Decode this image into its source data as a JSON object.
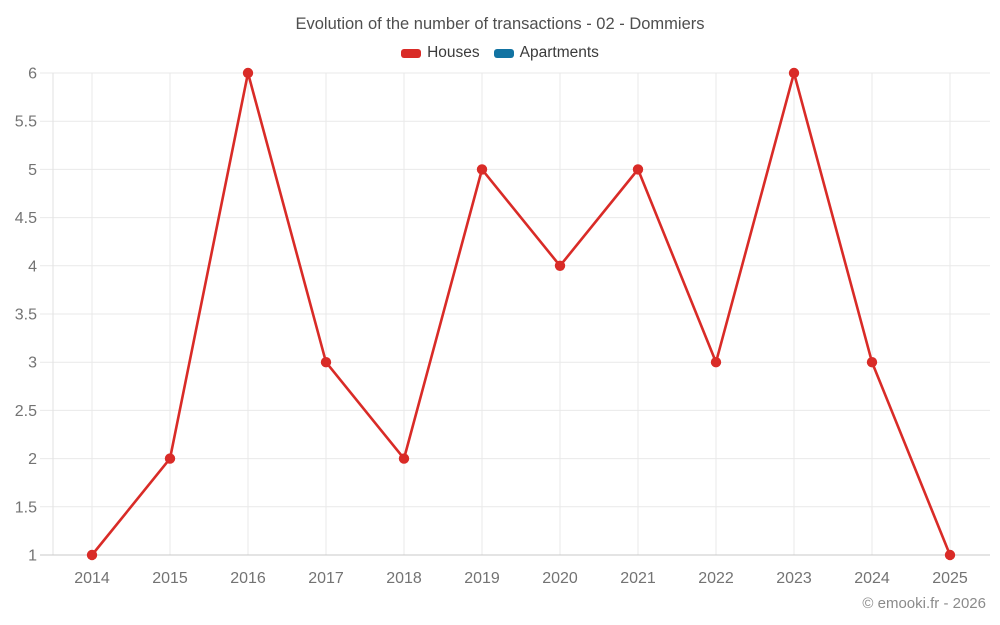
{
  "chart_data": {
    "type": "line",
    "title": "Evolution of the number of transactions - 02 - Dommiers",
    "categories": [
      "2014",
      "2015",
      "2016",
      "2017",
      "2018",
      "2019",
      "2020",
      "2021",
      "2022",
      "2023",
      "2024",
      "2025"
    ],
    "series": [
      {
        "name": "Houses",
        "color": "#d92b27",
        "values": [
          1,
          2,
          6,
          3,
          2,
          5,
          4,
          5,
          3,
          6,
          3,
          1
        ]
      },
      {
        "name": "Apartments",
        "color": "#1273a2",
        "values": []
      }
    ],
    "xlabel": "",
    "ylabel": "",
    "ylim": [
      1,
      6
    ],
    "yticks": [
      1,
      1.5,
      2,
      2.5,
      3,
      3.5,
      4,
      4.5,
      5,
      5.5,
      6
    ],
    "grid": true,
    "legend_position": "top",
    "marker": "circle"
  },
  "style_colors": {
    "gridline": "#e9e9e9",
    "y_axis_line": "#e2e2e2",
    "x_axis_line": "#c9c9c9",
    "tick_text": "#737373"
  },
  "footer": {
    "copyright": "© emooki.fr - 2026"
  }
}
